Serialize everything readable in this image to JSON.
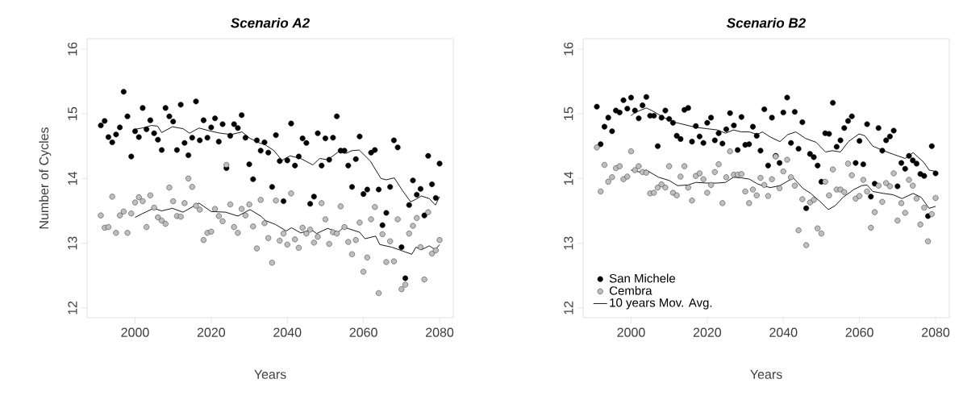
{
  "chart_data": [
    {
      "type": "scatter",
      "title": "Scenario A2",
      "xlabel": "Years",
      "ylabel": "Number of Cycles",
      "xlim": [
        1987.4,
        2083.6
      ],
      "ylim": [
        11.85,
        16.16
      ],
      "xticks": [
        2000,
        2020,
        2040,
        2060,
        2080
      ],
      "yticks": [
        12,
        13,
        14,
        15,
        16
      ],
      "legend": false,
      "series": [
        {
          "marker": "circle",
          "color": "#000000",
          "x": [
            1991,
            1992,
            1993,
            1994,
            1995,
            1996,
            1997,
            1998,
            1999,
            2000,
            2001,
            2002,
            2003,
            2004,
            2005,
            2006,
            2007,
            2008,
            2009,
            2010,
            2011,
            2012,
            2013,
            2014,
            2015,
            2016,
            2017,
            2018,
            2019,
            2020,
            2021,
            2022,
            2023,
            2024,
            2025,
            2026,
            2027,
            2028,
            2029,
            2030,
            2031,
            2032,
            2033,
            2034,
            2035,
            2036,
            2037,
            2038,
            2039,
            2040,
            2041,
            2042,
            2043,
            2044,
            2045,
            2046,
            2047,
            2048,
            2049,
            2050,
            2051,
            2052,
            2053,
            2054,
            2055,
            2056,
            2057,
            2058,
            2059,
            2060,
            2061,
            2062,
            2063,
            2064,
            2065,
            2066,
            2067,
            2068,
            2069,
            2070,
            2071,
            2072,
            2073,
            2074,
            2075,
            2076,
            2077,
            2078,
            2079,
            2080
          ],
          "values": [
            14.82,
            14.89,
            14.64,
            14.56,
            14.68,
            14.79,
            15.34,
            14.96,
            14.34,
            14.73,
            14.64,
            15.09,
            14.76,
            14.9,
            14.7,
            14.6,
            14.44,
            15.09,
            14.96,
            14.88,
            14.44,
            15.14,
            14.55,
            14.36,
            14.63,
            15.19,
            14.59,
            14.9,
            14.63,
            14.79,
            14.93,
            14.57,
            14.84,
            14.16,
            14.66,
            14.84,
            14.78,
            14.98,
            14.63,
            14.22,
            13.99,
            14.59,
            14.43,
            14.56,
            14.4,
            13.87,
            14.67,
            14.27,
            13.65,
            14.28,
            14.85,
            14.2,
            14.34,
            14.62,
            14.55,
            13.61,
            13.72,
            14.7,
            14.2,
            14.62,
            14.29,
            14.63,
            14.96,
            14.43,
            14.43,
            14.2,
            13.87,
            14.3,
            14.65,
            13.76,
            13.83,
            14.4,
            14.44,
            13.83,
            13.28,
            13.47,
            13.87,
            14.59,
            14.48,
            12.94,
            12.46,
            13.59,
            13.97,
            13.75,
            13.84,
            13.43,
            14.35,
            13.91,
            13.7,
            14.23
          ]
        },
        {
          "marker": "circle",
          "color": "#bebebe",
          "x": [
            1991,
            1992,
            1993,
            1994,
            1995,
            1996,
            1997,
            1998,
            1999,
            2000,
            2001,
            2002,
            2003,
            2004,
            2005,
            2006,
            2007,
            2008,
            2009,
            2010,
            2011,
            2012,
            2013,
            2014,
            2015,
            2016,
            2017,
            2018,
            2019,
            2020,
            2021,
            2022,
            2023,
            2024,
            2025,
            2026,
            2027,
            2028,
            2029,
            2030,
            2031,
            2032,
            2033,
            2034,
            2035,
            2036,
            2037,
            2038,
            2039,
            2040,
            2041,
            2042,
            2043,
            2044,
            2045,
            2046,
            2047,
            2048,
            2049,
            2050,
            2051,
            2052,
            2053,
            2054,
            2055,
            2056,
            2057,
            2058,
            2059,
            2060,
            2061,
            2062,
            2063,
            2064,
            2065,
            2066,
            2067,
            2068,
            2069,
            2070,
            2071,
            2072,
            2073,
            2074,
            2075,
            2076,
            2077,
            2078,
            2079,
            2080
          ],
          "values": [
            13.43,
            13.24,
            13.25,
            13.72,
            13.16,
            13.43,
            13.49,
            13.16,
            13.46,
            13.63,
            13.71,
            13.65,
            13.25,
            13.74,
            13.55,
            13.4,
            13.35,
            13.3,
            13.86,
            13.65,
            13.42,
            13.41,
            13.62,
            14.0,
            13.87,
            13.58,
            13.52,
            13.05,
            13.16,
            13.18,
            13.53,
            13.42,
            13.34,
            14.21,
            13.6,
            13.25,
            13.16,
            13.53,
            13.43,
            13.6,
            13.26,
            12.92,
            13.67,
            13.31,
            13.08,
            12.7,
            13.66,
            13.04,
            13.15,
            12.98,
            13.77,
            13.06,
            12.93,
            13.24,
            13.15,
            13.21,
            13.01,
            13.1,
            13.62,
            13.37,
            12.99,
            13.17,
            13.15,
            13.57,
            13.25,
            13.02,
            12.83,
            13.05,
            13.32,
            12.56,
            12.78,
            13.37,
            13.56,
            12.23,
            13.14,
            12.71,
            13.03,
            12.72,
            13.37,
            12.29,
            12.36,
            13.15,
            13.27,
            13.39,
            12.94,
            12.44,
            13.48,
            12.84,
            12.89,
            13.05
          ]
        },
        {
          "type": "line",
          "marker": "none",
          "color": "#000000",
          "x": [
            2000,
            2002.7,
            2004.2,
            2005.9,
            2007,
            2009.8,
            2012.6,
            2014.3,
            2016.8,
            2020,
            2022.4,
            2025.3,
            2028.1,
            2030.2,
            2033,
            2033.7,
            2036.5,
            2038.6,
            2040.7,
            2043.5,
            2046.7,
            2048.5,
            2050.6,
            2053.4,
            2055.5,
            2056.9,
            2058.9,
            2061.8,
            2064.6,
            2066,
            2068.1,
            2070.3,
            2072.4,
            2073.8,
            2075.2,
            2077.3,
            2078.9,
            2080
          ],
          "values": [
            14.76,
            14.79,
            14.82,
            14.81,
            14.71,
            14.8,
            14.77,
            14.7,
            14.78,
            14.73,
            14.7,
            14.68,
            14.72,
            14.62,
            14.54,
            14.54,
            14.43,
            14.28,
            14.35,
            14.31,
            14.21,
            14.31,
            14.29,
            14.41,
            14.39,
            14.43,
            14.44,
            14.27,
            14.0,
            13.98,
            14.01,
            13.81,
            13.64,
            13.68,
            13.73,
            13.69,
            13.59,
            13.72
          ]
        },
        {
          "type": "line",
          "marker": "none",
          "color": "#000000",
          "x": [
            2000,
            2002,
            2004.9,
            2007,
            2009.8,
            2012.6,
            2016.8,
            2020,
            2023.8,
            2027,
            2030.2,
            2033,
            2034.3,
            2036.9,
            2039.7,
            2041.1,
            2043.5,
            2046.3,
            2047.7,
            2050.6,
            2053.4,
            2054.8,
            2059,
            2060.4,
            2063.2,
            2064.3,
            2067.4,
            2070.3,
            2072.7,
            2073.8,
            2075.2,
            2077.3,
            2078.9,
            2080
          ],
          "values": [
            13.4,
            13.46,
            13.54,
            13.5,
            13.54,
            13.48,
            13.62,
            13.49,
            13.48,
            13.42,
            13.52,
            13.42,
            13.35,
            13.29,
            13.19,
            13.24,
            13.16,
            13.21,
            13.15,
            13.23,
            13.17,
            13.25,
            13.17,
            13.07,
            13.11,
            12.98,
            12.94,
            12.88,
            12.83,
            12.94,
            12.9,
            12.96,
            12.9,
            12.98
          ]
        }
      ]
    },
    {
      "type": "scatter",
      "title": "Scenario B2",
      "xlabel": "Years",
      "xlim": [
        1987.4,
        2083.6
      ],
      "ylim": [
        11.85,
        16.16
      ],
      "xticks": [
        2000,
        2020,
        2040,
        2060,
        2080
      ],
      "yticks": [
        12,
        13,
        14,
        15,
        16
      ],
      "legend": "bottom left",
      "series": [
        {
          "marker": "circle",
          "name": "San Michele",
          "color": "#000000",
          "x": [
            1991,
            1992,
            1993,
            1994,
            1995,
            1996,
            1997,
            1998,
            1999,
            2000,
            2001,
            2002,
            2003,
            2004,
            2005,
            2006,
            2007,
            2008,
            2009,
            2010,
            2011,
            2012,
            2013,
            2014,
            2015,
            2016,
            2017,
            2018,
            2019,
            2020,
            2021,
            2022,
            2023,
            2024,
            2025,
            2026,
            2027,
            2028,
            2029,
            2030,
            2031,
            2032,
            2033,
            2034,
            2035,
            2036,
            2037,
            2038,
            2039,
            2040,
            2041,
            2042,
            2043,
            2044,
            2045,
            2046,
            2047,
            2048,
            2049,
            2050,
            2051,
            2052,
            2053,
            2054,
            2055,
            2056,
            2057,
            2058,
            2059,
            2060,
            2061,
            2062,
            2063,
            2064,
            2065,
            2066,
            2067,
            2068,
            2069,
            2070,
            2071,
            2072,
            2073,
            2074,
            2075,
            2076,
            2077,
            2078,
            2079,
            2080
          ],
          "values": [
            15.11,
            14.53,
            14.8,
            14.94,
            14.73,
            15.05,
            15.02,
            15.21,
            15.08,
            15.25,
            15.05,
            14.93,
            15.13,
            15.26,
            14.97,
            14.97,
            14.5,
            14.94,
            15.05,
            14.92,
            14.86,
            14.66,
            14.61,
            15.06,
            15.09,
            14.57,
            14.81,
            14.65,
            14.55,
            14.86,
            14.94,
            14.59,
            14.7,
            14.54,
            14.76,
            15.01,
            14.82,
            14.44,
            14.95,
            14.52,
            14.53,
            14.8,
            14.66,
            14.43,
            15.07,
            14.2,
            14.94,
            14.35,
            14.24,
            15.02,
            15.25,
            14.55,
            15.03,
            14.46,
            14.87,
            13.54,
            14.38,
            14.33,
            14.2,
            13.95,
            14.7,
            14.69,
            15.17,
            14.49,
            14.59,
            14.78,
            14.89,
            14.96,
            14.24,
            14.58,
            14.22,
            14.84,
            13.72,
            13.92,
            14.78,
            14.43,
            14.59,
            14.65,
            14.74,
            13.88,
            14.24,
            14.15,
            14.35,
            14.28,
            14.23,
            14.07,
            14.04,
            13.42,
            14.5,
            14.08
          ]
        },
        {
          "marker": "circle",
          "name": "Cembra",
          "color": "#bebebe",
          "x": [
            1991,
            1992,
            1993,
            1994,
            1995,
            1996,
            1997,
            1998,
            1999,
            2000,
            2001,
            2002,
            2003,
            2004,
            2005,
            2006,
            2007,
            2008,
            2009,
            2010,
            2011,
            2012,
            2013,
            2014,
            2015,
            2016,
            2017,
            2018,
            2019,
            2020,
            2021,
            2022,
            2023,
            2024,
            2025,
            2026,
            2027,
            2028,
            2029,
            2030,
            2031,
            2032,
            2033,
            2034,
            2035,
            2036,
            2037,
            2038,
            2039,
            2040,
            2041,
            2042,
            2043,
            2044,
            2045,
            2046,
            2047,
            2048,
            2049,
            2050,
            2051,
            2052,
            2053,
            2054,
            2055,
            2056,
            2057,
            2058,
            2059,
            2060,
            2061,
            2062,
            2063,
            2064,
            2065,
            2066,
            2067,
            2068,
            2069,
            2070,
            2071,
            2072,
            2073,
            2074,
            2075,
            2076,
            2077,
            2078,
            2079,
            2080
          ],
          "values": [
            14.48,
            13.8,
            14.21,
            13.95,
            14.02,
            14.16,
            14.19,
            13.99,
            14.03,
            14.42,
            14.13,
            14.19,
            14.1,
            14.09,
            13.77,
            13.78,
            13.86,
            13.91,
            13.86,
            14.19,
            13.78,
            13.74,
            14.03,
            14.19,
            13.86,
            13.66,
            14.04,
            14.08,
            13.99,
            13.78,
            13.9,
            14.1,
            14.22,
            13.62,
            14.02,
            14.42,
            14.06,
            14.06,
            14.07,
            13.8,
            13.62,
            13.83,
            13.74,
            14.01,
            13.9,
            13.73,
            13.99,
            14.34,
            13.85,
            14.11,
            14.29,
            14.02,
            13.89,
            13.2,
            13.68,
            12.97,
            13.63,
            13.67,
            13.23,
            13.15,
            13.95,
            13.74,
            14.14,
            13.83,
            13.83,
            13.79,
            14.23,
            14.05,
            13.69,
            13.73,
            13.98,
            13.8,
            13.24,
            13.48,
            13.89,
            13.64,
            13.93,
            13.88,
            14.08,
            13.35,
            13.62,
            13.47,
            13.98,
            13.89,
            13.69,
            13.29,
            13.55,
            13.03,
            13.45,
            13.7
          ]
        },
        {
          "type": "line",
          "marker": "none",
          "name": "10 years Mov. Avg.",
          "color": "#000000",
          "x": [
            2000,
            2001,
            2004,
            2005.8,
            2008.6,
            2011.4,
            2014.2,
            2017,
            2019.9,
            2022.7,
            2024.8,
            2026.9,
            2029,
            2031.1,
            2033.1,
            2034.5,
            2036.6,
            2039.1,
            2041.2,
            2043.3,
            2045.8,
            2048.6,
            2051.1,
            2052.9,
            2055,
            2057.1,
            2059.9,
            2061.4,
            2063.5,
            2066.3,
            2069.1,
            2072,
            2074.1,
            2076.9,
            2078.3,
            2080
          ],
          "values": [
            14.97,
            15.02,
            15.09,
            15.04,
            14.94,
            14.87,
            14.83,
            14.79,
            14.77,
            14.75,
            14.7,
            14.75,
            14.72,
            14.72,
            14.68,
            14.72,
            14.64,
            14.57,
            14.68,
            14.72,
            14.62,
            14.56,
            14.41,
            14.43,
            14.41,
            14.57,
            14.69,
            14.66,
            14.5,
            14.43,
            14.37,
            14.31,
            14.4,
            14.25,
            14.13,
            14.11
          ]
        },
        {
          "type": "line",
          "marker": "none",
          "color": "#000000",
          "x": [
            2000,
            2002.3,
            2004,
            2007.2,
            2010,
            2012.2,
            2015,
            2017,
            2019.9,
            2022.7,
            2024.8,
            2026.9,
            2029,
            2031.1,
            2033.1,
            2034.5,
            2036.6,
            2039.1,
            2042.6,
            2045.1,
            2047.2,
            2050.1,
            2051.8,
            2053.6,
            2055.7,
            2058.5,
            2060.6,
            2062,
            2063.5,
            2066.3,
            2068.8,
            2071.2,
            2074.1,
            2076.2,
            2078.3,
            2080
          ],
          "values": [
            14.13,
            14.1,
            14.13,
            14.02,
            13.97,
            13.89,
            13.9,
            13.94,
            13.93,
            13.93,
            13.94,
            14.02,
            14.01,
            13.99,
            13.92,
            13.89,
            13.86,
            13.89,
            14.01,
            13.85,
            13.77,
            13.62,
            13.52,
            13.58,
            13.71,
            13.83,
            13.89,
            13.9,
            13.8,
            13.77,
            13.75,
            13.69,
            13.77,
            13.71,
            13.54,
            13.57
          ]
        }
      ]
    }
  ]
}
